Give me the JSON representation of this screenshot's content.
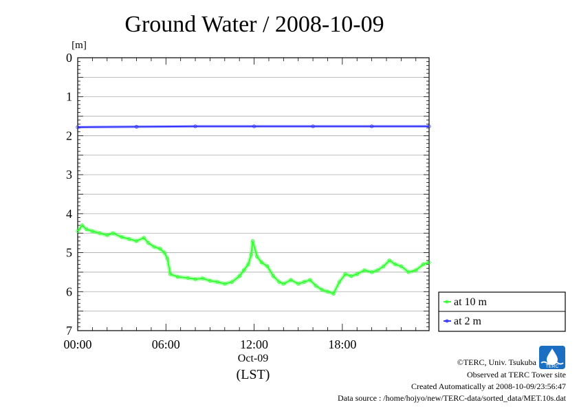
{
  "chart_data": {
    "type": "line",
    "title": "Ground Water / 2008-10-09",
    "ylabel": "[m]",
    "xlabel": "(LST)",
    "date_label": "Oct-09",
    "x_ticks": [
      "00:00",
      "06:00",
      "12:00",
      "18:00"
    ],
    "x_tick_hours": [
      0,
      6,
      12,
      18
    ],
    "xlim": [
      0,
      23.9
    ],
    "y_ticks": [
      "0",
      "1",
      "2",
      "3",
      "4",
      "5",
      "6",
      "7"
    ],
    "ylim": [
      0,
      7
    ],
    "y_inverted": true,
    "grid": "horizontal",
    "legend_position": "bottom-right outside",
    "series": [
      {
        "name": "at 10 m",
        "color": "#33ff33",
        "x": [
          0,
          0.3,
          0.6,
          1.0,
          1.5,
          2.0,
          2.4,
          3.0,
          3.5,
          4.0,
          4.5,
          4.8,
          5.2,
          5.6,
          5.9,
          6.1,
          6.3,
          6.8,
          7.5,
          8.0,
          8.5,
          9.0,
          9.5,
          10.0,
          10.5,
          11.0,
          11.3,
          11.6,
          11.8,
          11.9,
          12.2,
          12.5,
          12.9,
          13.3,
          13.7,
          14.0,
          14.5,
          15.0,
          15.4,
          15.8,
          16.2,
          16.6,
          17.0,
          17.4,
          17.8,
          18.2,
          18.6,
          19.0,
          19.5,
          20.0,
          20.4,
          20.8,
          21.2,
          21.6,
          22.0,
          22.5,
          23.0,
          23.5,
          23.9
        ],
        "values": [
          4.45,
          4.3,
          4.4,
          4.45,
          4.5,
          4.55,
          4.5,
          4.6,
          4.65,
          4.7,
          4.62,
          4.75,
          4.85,
          4.9,
          5.0,
          5.15,
          5.55,
          5.62,
          5.65,
          5.68,
          5.66,
          5.72,
          5.75,
          5.8,
          5.75,
          5.6,
          5.45,
          5.3,
          5.05,
          4.7,
          5.1,
          5.25,
          5.35,
          5.6,
          5.75,
          5.8,
          5.7,
          5.8,
          5.75,
          5.7,
          5.85,
          5.95,
          6.0,
          6.05,
          5.75,
          5.55,
          5.6,
          5.55,
          5.45,
          5.5,
          5.45,
          5.35,
          5.2,
          5.3,
          5.35,
          5.5,
          5.45,
          5.3,
          5.25
        ]
      },
      {
        "name": "at 2 m",
        "color": "#3333ff",
        "x": [
          0,
          4,
          8,
          12,
          16,
          20,
          23.9
        ],
        "values": [
          1.78,
          1.77,
          1.76,
          1.76,
          1.76,
          1.76,
          1.76
        ]
      }
    ]
  },
  "footer": {
    "copyright": "©TERC, Univ. Tsukuba",
    "observed": "Observed at TERC Tower site",
    "created": "Created Automatically at 2008-10-09/23:56:47",
    "source": "Data source : /home/hojyo/new/TERC-data/sorted_data/MET.10s.dat"
  },
  "logo_text": "TERC",
  "colors": {
    "grid": "#aaaaaa",
    "axis": "#000000"
  }
}
